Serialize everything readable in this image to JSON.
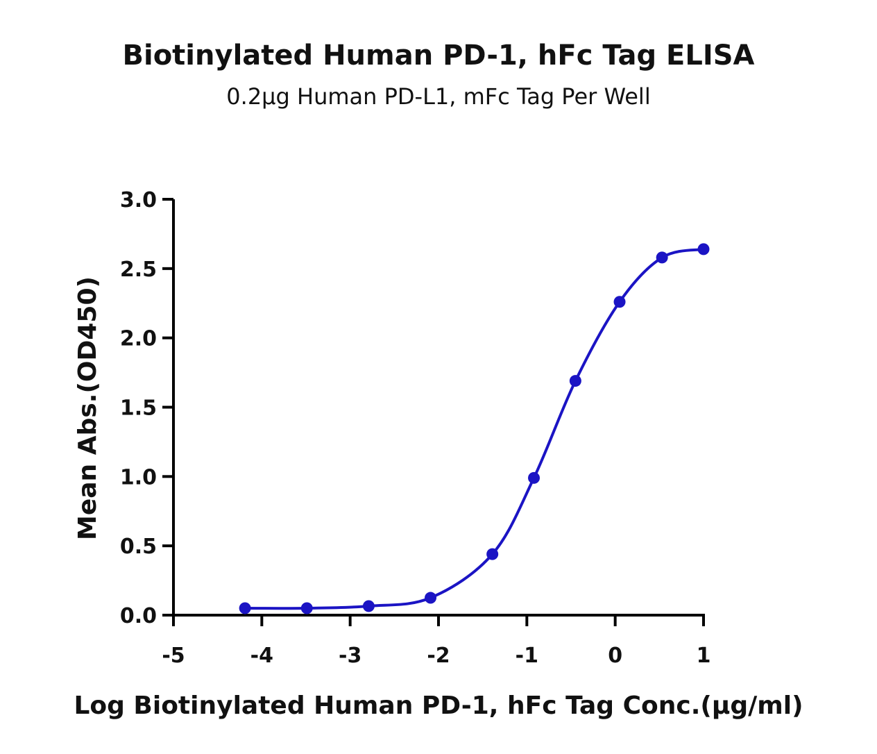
{
  "chart_data": {
    "type": "scatter",
    "title": "Biotinylated Human PD-1, hFc Tag ELISA",
    "subtitle": "0.2µg Human PD-L1, mFc Tag Per Well",
    "xlabel": "Log Biotinylated Human PD-1, hFc Tag Conc.(µg/ml)",
    "ylabel": "Mean Abs.(OD450)",
    "xlim": [
      -5,
      1
    ],
    "ylim": [
      0,
      3
    ],
    "xticks": [
      -5,
      -4,
      -3,
      -2,
      -1,
      0,
      1
    ],
    "yticks": [
      0,
      0.5,
      1,
      1.5,
      2,
      2.5,
      3
    ],
    "xtick_labels": [
      "-5",
      "-4",
      "-3",
      "-2",
      "-1",
      "0",
      "1"
    ],
    "ytick_labels": [
      "0.0",
      "0.5",
      "1.0",
      "1.5",
      "2.0",
      "2.5",
      "3.0"
    ],
    "grid": false,
    "color": "#1b14c4",
    "series": [
      {
        "x": [
          -4.19,
          -3.49,
          -2.79,
          -2.09,
          -1.39,
          -0.92,
          -0.45,
          0.05,
          0.53,
          1.0
        ],
        "y": [
          0.05,
          0.05,
          0.065,
          0.125,
          0.44,
          0.99,
          1.69,
          2.26,
          2.58,
          2.64
        ],
        "fit": "4PL sigmoidal"
      }
    ]
  }
}
